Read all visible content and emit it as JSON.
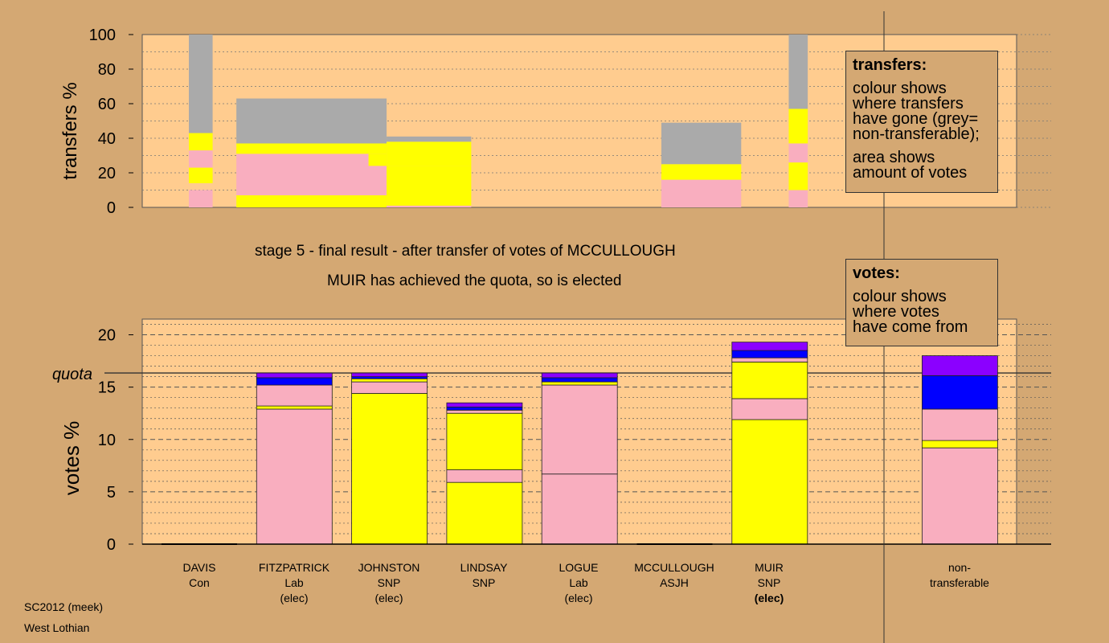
{
  "caption": {
    "line1": "stage 5 - final result - after transfer of votes of MCCULLOUGH",
    "line2": "MUIR has achieved the quota, so is elected"
  },
  "footer": {
    "line1": "SC2012 (meek)",
    "line2": "West Lothian"
  },
  "legend_transfers": {
    "title": "transfers:",
    "l1": "colour shows",
    "l2": "where transfers",
    "l3": "have gone (grey=",
    "l4": "non-transferable);",
    "l5": "area shows",
    "l6": "amount of votes"
  },
  "legend_votes": {
    "title": "votes:",
    "l1": "colour shows",
    "l2": "where votes",
    "l3": "have come from"
  },
  "candidates": [
    {
      "name": "DAVIS",
      "party": "Con",
      "status": ""
    },
    {
      "name": "FITZPATRICK",
      "party": "Lab",
      "status": "(elec)"
    },
    {
      "name": "JOHNSTON",
      "party": "SNP",
      "status": "(elec)"
    },
    {
      "name": "LINDSAY",
      "party": "SNP",
      "status": ""
    },
    {
      "name": "LOGUE",
      "party": "Lab",
      "status": "(elec)"
    },
    {
      "name": "MCCULLOUGH",
      "party": "ASJH",
      "status": ""
    },
    {
      "name": "MUIR",
      "party": "SNP",
      "status": "(elec)"
    },
    {
      "name": "non-",
      "party": "transferable",
      "status": ""
    }
  ],
  "colors": {
    "background": "#d4a873",
    "plot_area": "#ffcc8f",
    "pink": "#f9aebf",
    "yellow": "#ffff00",
    "grey": "#aaaaaa",
    "blue": "#0000ff",
    "purple": "#8b00ff"
  },
  "chart_data": [
    {
      "type": "bar",
      "name": "transfers",
      "ylabel": "transfers %",
      "ylim": [
        0,
        100
      ],
      "yticks": [
        0,
        20,
        40,
        60,
        80,
        100
      ],
      "segments": [
        {
          "x0": 0,
          "x1": 0.25,
          "y0": 0,
          "y1": 10,
          "color": "pink"
        },
        {
          "x0": 0,
          "x1": 0.25,
          "y0": 14,
          "y1": 23,
          "color": "yellow"
        },
        {
          "x0": 0,
          "x1": 0.25,
          "y0": 23,
          "y1": 33,
          "color": "pink"
        },
        {
          "x0": 0,
          "x1": 0.25,
          "y0": 33,
          "y1": 43,
          "color": "yellow"
        },
        {
          "x0": 0,
          "x1": 0.25,
          "y0": 43,
          "y1": 100,
          "color": "grey"
        },
        {
          "x0": 0.5,
          "x1": 2.08,
          "y0": 0,
          "y1": 7,
          "color": "yellow"
        },
        {
          "x0": 0.5,
          "x1": 2.08,
          "y0": 7,
          "y1": 31,
          "color": "pink"
        },
        {
          "x0": 0.5,
          "x1": 2.08,
          "y0": 31,
          "y1": 37,
          "color": "yellow"
        },
        {
          "x0": 0.5,
          "x1": 2.08,
          "y0": 37,
          "y1": 63,
          "color": "grey"
        },
        {
          "x0": 1.89,
          "x1": 2.08,
          "y0": 24,
          "y1": 31,
          "color": "yellow"
        },
        {
          "x0": 2.08,
          "x1": 2.97,
          "y0": 0,
          "y1": 1,
          "color": "pink"
        },
        {
          "x0": 2.08,
          "x1": 2.97,
          "y0": 1,
          "y1": 24,
          "color": "yellow"
        },
        {
          "x0": 2.08,
          "x1": 2.97,
          "y0": 24,
          "y1": 38,
          "color": "yellow"
        },
        {
          "x0": 2.08,
          "x1": 2.97,
          "y0": 38,
          "y1": 41,
          "color": "grey"
        },
        {
          "x0": 4.97,
          "x1": 5.81,
          "y0": 0,
          "y1": 16,
          "color": "pink"
        },
        {
          "x0": 4.97,
          "x1": 5.81,
          "y0": 16,
          "y1": 25,
          "color": "yellow"
        },
        {
          "x0": 4.97,
          "x1": 5.81,
          "y0": 25,
          "y1": 49,
          "color": "grey"
        },
        {
          "x0": 6.31,
          "x1": 6.51,
          "y0": 0,
          "y1": 10,
          "color": "pink"
        },
        {
          "x0": 6.31,
          "x1": 6.51,
          "y0": 10,
          "y1": 26,
          "color": "yellow"
        },
        {
          "x0": 6.31,
          "x1": 6.51,
          "y0": 26,
          "y1": 37,
          "color": "pink"
        },
        {
          "x0": 6.31,
          "x1": 6.51,
          "y0": 37,
          "y1": 57,
          "color": "yellow"
        },
        {
          "x0": 6.31,
          "x1": 6.51,
          "y0": 57,
          "y1": 100,
          "color": "grey"
        }
      ]
    },
    {
      "type": "bar",
      "name": "votes",
      "ylabel": "votes %",
      "ylim": [
        0,
        21.5
      ],
      "yticks": [
        0,
        5,
        10,
        15,
        20
      ],
      "quota": 16.35,
      "quota_label": "quota",
      "bars": [
        {
          "candidate": "DAVIS",
          "segments": []
        },
        {
          "candidate": "FITZPATRICK",
          "segments": [
            {
              "y0": 0,
              "y1": 12.9,
              "color": "pink"
            },
            {
              "y0": 12.9,
              "y1": 13.2,
              "color": "yellow"
            },
            {
              "y0": 13.2,
              "y1": 15.2,
              "color": "pink"
            },
            {
              "y0": 15.2,
              "y1": 15.9,
              "color": "blue"
            },
            {
              "y0": 15.9,
              "y1": 16.35,
              "color": "purple"
            }
          ]
        },
        {
          "candidate": "JOHNSTON",
          "segments": [
            {
              "y0": 0,
              "y1": 14.4,
              "color": "yellow"
            },
            {
              "y0": 14.4,
              "y1": 15.5,
              "color": "pink"
            },
            {
              "y0": 15.5,
              "y1": 15.8,
              "color": "yellow"
            },
            {
              "y0": 15.8,
              "y1": 16.0,
              "color": "blue"
            },
            {
              "y0": 16.0,
              "y1": 16.35,
              "color": "purple"
            }
          ]
        },
        {
          "candidate": "LINDSAY",
          "segments": [
            {
              "y0": 0,
              "y1": 5.9,
              "color": "yellow"
            },
            {
              "y0": 5.9,
              "y1": 7.1,
              "color": "pink"
            },
            {
              "y0": 7.1,
              "y1": 12.5,
              "color": "yellow"
            },
            {
              "y0": 12.5,
              "y1": 12.8,
              "color": "pink"
            },
            {
              "y0": 12.8,
              "y1": 13.1,
              "color": "blue"
            },
            {
              "y0": 13.1,
              "y1": 13.5,
              "color": "purple"
            }
          ]
        },
        {
          "candidate": "LOGUE",
          "segments": [
            {
              "y0": 0,
              "y1": 6.7,
              "color": "pink"
            },
            {
              "y0": 6.7,
              "y1": 15.2,
              "color": "pink"
            },
            {
              "y0": 15.2,
              "y1": 15.5,
              "color": "yellow"
            },
            {
              "y0": 15.5,
              "y1": 15.9,
              "color": "blue"
            },
            {
              "y0": 15.9,
              "y1": 16.35,
              "color": "purple"
            }
          ]
        },
        {
          "candidate": "MCCULLOUGH",
          "segments": []
        },
        {
          "candidate": "MUIR",
          "segments": [
            {
              "y0": 0,
              "y1": 11.9,
              "color": "yellow"
            },
            {
              "y0": 11.9,
              "y1": 13.9,
              "color": "pink"
            },
            {
              "y0": 13.9,
              "y1": 17.4,
              "color": "yellow"
            },
            {
              "y0": 17.4,
              "y1": 17.8,
              "color": "pink"
            },
            {
              "y0": 17.8,
              "y1": 18.5,
              "color": "blue"
            },
            {
              "y0": 18.5,
              "y1": 19.3,
              "color": "purple"
            }
          ]
        },
        {
          "candidate": "non-transferable",
          "segments": [
            {
              "y0": 0,
              "y1": 9.2,
              "color": "pink"
            },
            {
              "y0": 9.2,
              "y1": 9.9,
              "color": "yellow"
            },
            {
              "y0": 9.9,
              "y1": 12.9,
              "color": "pink"
            },
            {
              "y0": 12.9,
              "y1": 16.1,
              "color": "blue"
            },
            {
              "y0": 16.1,
              "y1": 18.0,
              "color": "purple"
            }
          ]
        }
      ]
    }
  ]
}
